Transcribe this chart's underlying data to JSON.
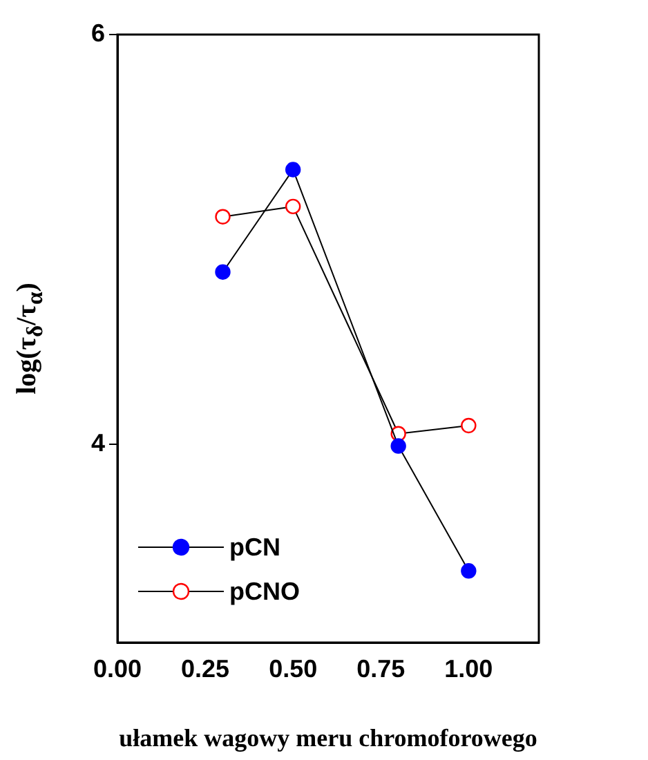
{
  "chart_data": {
    "type": "line",
    "xlabel": "ułamek wagowy meru chromoforowego",
    "ylabel": "log(τ$_{δ}$/τ$_{α}$)",
    "xlim": [
      0,
      1.2
    ],
    "xticks": [
      {
        "value": 0,
        "label": "0.00"
      },
      {
        "value": 0.25,
        "label": "0.25"
      },
      {
        "value": 0.5,
        "label": "0.50"
      },
      {
        "value": 0.75,
        "label": "0.75"
      },
      {
        "value": 1,
        "label": "1.00"
      }
    ],
    "ylim": [
      3.03,
      6
    ],
    "yticks": [
      4,
      6
    ],
    "grid": false,
    "legend": "bottom left",
    "marker": "circle",
    "line_style": "solid",
    "series": [
      {
        "name": "pCN",
        "color": "#0000ff",
        "x": [
          0.3,
          0.5,
          0.8,
          1.0
        ],
        "values": [
          4.84,
          5.34,
          3.99,
          3.38
        ]
      },
      {
        "name": "pCNO",
        "color": "#ff0000",
        "x": [
          0.3,
          0.5,
          0.8,
          1.0
        ],
        "values": [
          5.11,
          5.16,
          4.05,
          4.09
        ]
      }
    ]
  }
}
